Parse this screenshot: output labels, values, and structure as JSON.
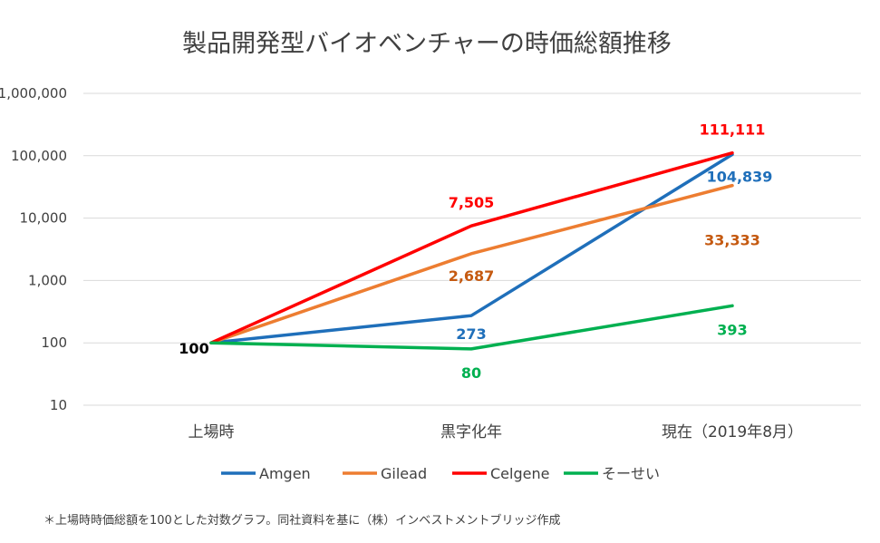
{
  "chart_data": {
    "type": "line",
    "title": "製品開発型バイオベンチャーの時価総額推移",
    "categories": [
      "上場時",
      "黒字化年",
      "現在（2019年8月）"
    ],
    "y_scale": "log",
    "ylim": [
      10,
      1000000
    ],
    "y_ticks": [
      10,
      100,
      1000,
      10000,
      100000,
      1000000
    ],
    "y_tick_labels": [
      "10",
      "100",
      "1,000",
      "10,000",
      "100,000",
      "1,000,000"
    ],
    "grid": true,
    "legend_position": "bottom",
    "series": [
      {
        "name": "Amgen",
        "color": "#1f6fba",
        "values": [
          100,
          273,
          104839
        ],
        "labels": [
          "",
          "273",
          "104,839"
        ]
      },
      {
        "name": "Gilead",
        "color": "#ed7d31",
        "label_color": "#c55a11",
        "values": [
          100,
          2687,
          33333
        ],
        "labels": [
          "",
          "2,687",
          "33,333"
        ]
      },
      {
        "name": "Celgene",
        "color": "#ff0000",
        "values": [
          100,
          7505,
          111111
        ],
        "labels": [
          "",
          "7,505",
          "111,111"
        ]
      },
      {
        "name": "そーせい",
        "color": "#00b050",
        "values": [
          100,
          80,
          393
        ],
        "labels": [
          "",
          "80",
          "393"
        ]
      }
    ],
    "start_label": "100",
    "footnote": "＊上場時時価総額を100とした対数グラフ。同社資料を基に（株）インベストメントブリッジ作成"
  }
}
